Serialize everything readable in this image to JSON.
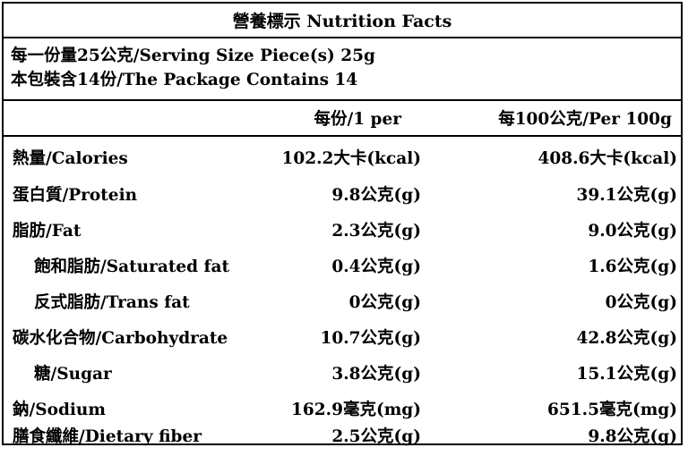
{
  "title": "營養標示 Nutrition Facts",
  "serving": {
    "size": "每一份量25公克/Serving Size Piece(s) 25g",
    "servings": "本包裝含14份/The Package Contains 14"
  },
  "header": {
    "per_serving": "每份/1 per",
    "per_100g": "每100公克/Per 100g"
  },
  "rows": [
    {
      "name": "熱量/Calories",
      "per_serving": "102.2大卡(kcal)",
      "per_100g": "408.6大卡(kcal)"
    },
    {
      "name": "蛋白質/Protein",
      "per_serving": "9.8公克(g)",
      "per_100g": "39.1公克(g)"
    },
    {
      "name": "脂肪/Fat",
      "per_serving": "2.3公克(g)",
      "per_100g": "9.0公克(g)"
    },
    {
      "name": "飽和脂肪/Saturated fat",
      "per_serving": "0.4公克(g)",
      "per_100g": "1.6公克(g)"
    },
    {
      "name": "反式脂肪/Trans fat",
      "per_serving": "0公克(g)",
      "per_100g": "0公克(g)"
    },
    {
      "name": "碳水化合物/Carbohydrate",
      "per_serving": "10.7公克(g)",
      "per_100g": "42.8公克(g)"
    },
    {
      "name": "糖/Sugar",
      "per_serving": "3.8公克(g)",
      "per_100g": "15.1公克(g)"
    },
    {
      "name": "鈉/Sodium",
      "per_serving": "162.9毫克(mg)",
      "per_100g": "651.5毫克(mg)"
    },
    {
      "name": "膳食纖維/Dietary fiber",
      "per_serving": "2.5公克(g)",
      "per_100g": "9.8公克(g)"
    }
  ]
}
